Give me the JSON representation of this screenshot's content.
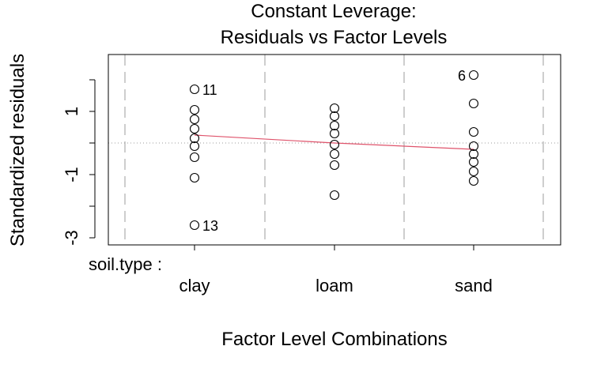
{
  "chart_data": {
    "type": "scatter",
    "title": "Constant Leverage:",
    "subtitle": "Residuals vs Factor Levels",
    "xlabel": "Factor Level Combinations",
    "ylabel": "Standardized residuals",
    "factor_label": "soil.type :",
    "categories": [
      "clay",
      "loam",
      "sand"
    ],
    "ylim": [
      -3.0,
      2.7
    ],
    "yticks": [
      -3,
      -1,
      1
    ],
    "grid": {
      "vertical_dashed": true,
      "zero_line_dotted": true
    },
    "colors": {
      "points": "#000000",
      "smooth": "#DF536B",
      "grid": "#BEBEBE",
      "zero_line": "#9E9E9E"
    },
    "series": [
      {
        "category": "clay",
        "values": [
          1.7,
          1.05,
          0.75,
          0.45,
          0.15,
          -0.1,
          -0.45,
          -1.1,
          -2.6
        ]
      },
      {
        "category": "loam",
        "values": [
          1.1,
          0.85,
          0.55,
          0.3,
          -0.05,
          -0.35,
          -0.7,
          -1.65
        ]
      },
      {
        "category": "sand",
        "values": [
          2.15,
          1.25,
          0.35,
          -0.1,
          -0.35,
          -0.6,
          -0.9,
          -1.2
        ]
      }
    ],
    "smooth_line": [
      {
        "category": "clay",
        "y": 0.25
      },
      {
        "category": "loam",
        "y": 0.0
      },
      {
        "category": "sand",
        "y": -0.2
      }
    ],
    "point_labels": [
      {
        "text": "11",
        "category": "clay",
        "y": 1.7,
        "side": "right"
      },
      {
        "text": "13",
        "category": "clay",
        "y": -2.6,
        "side": "right"
      },
      {
        "text": "6",
        "category": "sand",
        "y": 2.15,
        "side": "left"
      }
    ]
  }
}
